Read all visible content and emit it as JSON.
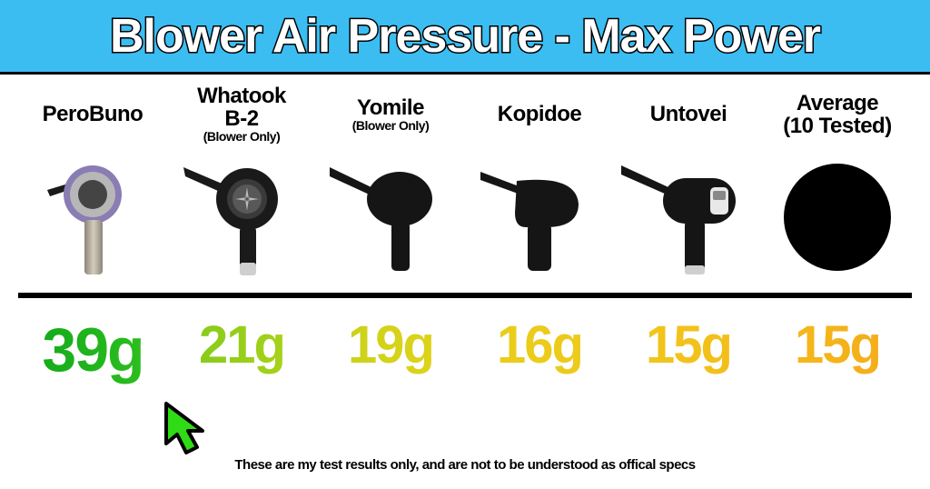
{
  "header": {
    "title": "Blower Air Pressure - Max Power",
    "bg_color": "#3bbdf2",
    "text_color": "#ffffff",
    "stroke_color": "#000000",
    "title_fontsize": 52
  },
  "products": [
    {
      "name": "PeroBuno",
      "sub": "",
      "icon": "blower-silver"
    },
    {
      "name": "Whatook\nB-2",
      "sub": "(Blower Only)",
      "icon": "blower-dark-a"
    },
    {
      "name": "Yomile",
      "sub": "(Blower Only)",
      "icon": "blower-dark-b"
    },
    {
      "name": "Kopidoe",
      "sub": "",
      "icon": "blower-dark-c"
    },
    {
      "name": "Untovei",
      "sub": "",
      "icon": "blower-dark-d"
    },
    {
      "name": "Average\n(10 Tested)",
      "sub": "",
      "icon": "circle"
    }
  ],
  "values": [
    {
      "text": "39g",
      "gradient_from": "#0fa81a",
      "gradient_to": "#32c21f",
      "fontsize": 68
    },
    {
      "text": "21g",
      "gradient_from": "#7cc91a",
      "gradient_to": "#b3d41a",
      "fontsize": 58
    },
    {
      "text": "19g",
      "gradient_from": "#c4d11a",
      "gradient_to": "#e6d31a",
      "fontsize": 58
    },
    {
      "text": "16g",
      "gradient_from": "#e7cf1a",
      "gradient_to": "#f0c81a",
      "fontsize": 58
    },
    {
      "text": "15g",
      "gradient_from": "#f0c81a",
      "gradient_to": "#f3bc1a",
      "fontsize": 58
    },
    {
      "text": "15g",
      "gradient_from": "#f3bc1a",
      "gradient_to": "#f5aa1a",
      "fontsize": 58
    }
  ],
  "divider_color": "#000000",
  "cursor_color": "#2edb14",
  "cursor_stroke": "#000000",
  "disclaimer": "These are my test results only, and are not to be understood as offical specs",
  "background_color": "#ffffff",
  "label_fontsize": 24,
  "sublabel_fontsize": 14,
  "disclaimer_fontsize": 15
}
